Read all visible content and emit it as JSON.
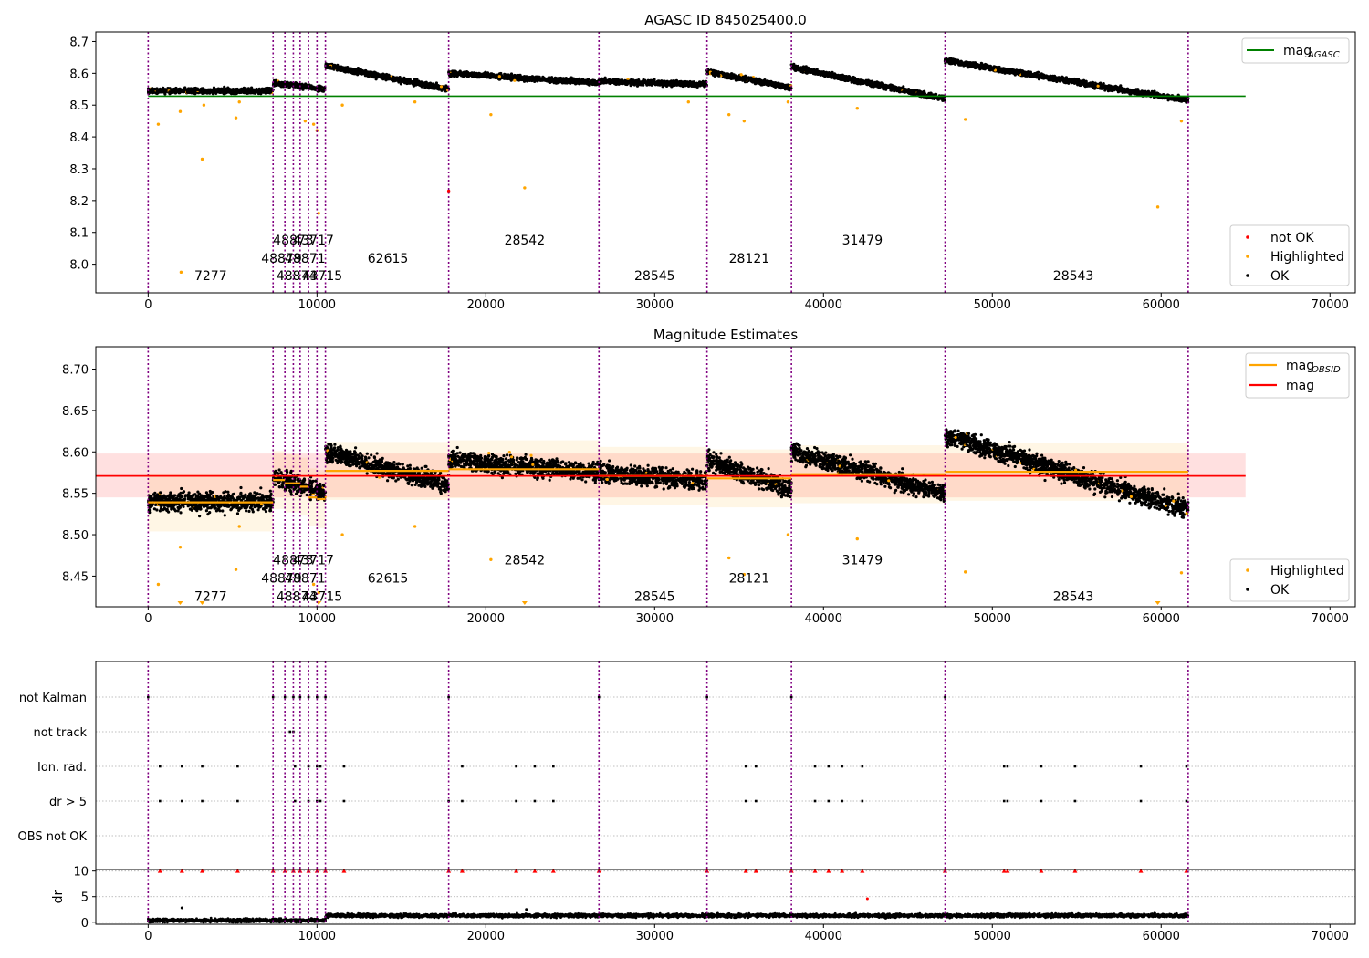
{
  "colors": {
    "ok": "#000000",
    "highlighted": "#ffa500",
    "not_ok": "#ff0000",
    "obsid_line": "#800080",
    "mag_agasc": "#008000",
    "mag_obsid": "#ffa500",
    "mag": "#ff0000"
  },
  "chart_data": [
    {
      "type": "scatter",
      "title": "AGASC ID 845025400.0",
      "xlim": [
        -3100,
        71500
      ],
      "ylim": [
        7.91,
        8.73
      ],
      "xticks": [
        0,
        10000,
        20000,
        30000,
        40000,
        50000,
        60000,
        70000
      ],
      "yticks": [
        8.0,
        8.1,
        8.2,
        8.3,
        8.4,
        8.5,
        8.6,
        8.7
      ],
      "obsid_boundaries": [
        0,
        7400,
        8100,
        8600,
        9000,
        9500,
        10000,
        10500,
        17800,
        26700,
        33100,
        38100,
        47200,
        61600
      ],
      "segments": [
        {
          "x0": 0,
          "x1": 7400,
          "start": 8.545,
          "end": 8.545
        },
        {
          "x0": 7400,
          "x1": 10500,
          "start": 8.57,
          "end": 8.55
        },
        {
          "x0": 10500,
          "x1": 17800,
          "start": 8.625,
          "end": 8.55
        },
        {
          "x0": 17800,
          "x1": 26700,
          "start": 8.6,
          "end": 8.57
        },
        {
          "x0": 26700,
          "x1": 33100,
          "start": 8.575,
          "end": 8.565
        },
        {
          "x0": 33100,
          "x1": 38100,
          "start": 8.605,
          "end": 8.555
        },
        {
          "x0": 38100,
          "x1": 47200,
          "start": 8.62,
          "end": 8.52
        },
        {
          "x0": 47200,
          "x1": 61600,
          "start": 8.64,
          "end": 8.515
        }
      ],
      "highlighted_points": [
        [
          600,
          8.44
        ],
        [
          1900,
          8.48
        ],
        [
          1950,
          7.975
        ],
        [
          3200,
          8.33
        ],
        [
          3300,
          8.5
        ],
        [
          5200,
          8.46
        ],
        [
          5400,
          8.51
        ],
        [
          9300,
          8.45
        ],
        [
          9800,
          8.44
        ],
        [
          10000,
          8.42
        ],
        [
          10100,
          8.16
        ],
        [
          11500,
          8.5
        ],
        [
          15800,
          8.51
        ],
        [
          20300,
          8.47
        ],
        [
          22300,
          8.24
        ],
        [
          32000,
          8.51
        ],
        [
          34400,
          8.47
        ],
        [
          35300,
          8.45
        ],
        [
          37900,
          8.51
        ],
        [
          42000,
          8.49
        ],
        [
          48400,
          8.455
        ],
        [
          59800,
          8.18
        ],
        [
          61200,
          8.45
        ]
      ],
      "not_ok_points": [
        [
          17800,
          8.23
        ]
      ],
      "hlines": [
        {
          "name": "mag_AGASC",
          "y": 8.528,
          "x0": 0,
          "x1": 65000
        }
      ],
      "obsid_labels": [
        {
          "text": "7277",
          "x": 3700,
          "y": 7.95
        },
        {
          "text": "48879",
          "x": 7900,
          "y": 8.005
        },
        {
          "text": "48873",
          "x": 8600,
          "y": 8.062
        },
        {
          "text": "48871",
          "x": 9300,
          "y": 8.005
        },
        {
          "text": "48874",
          "x": 8800,
          "y": 7.95
        },
        {
          "text": "43717",
          "x": 9800,
          "y": 8.062
        },
        {
          "text": "43715",
          "x": 10300,
          "y": 7.95
        },
        {
          "text": "62615",
          "x": 14200,
          "y": 8.005
        },
        {
          "text": "28542",
          "x": 22300,
          "y": 8.062
        },
        {
          "text": "28545",
          "x": 30000,
          "y": 7.95
        },
        {
          "text": "28121",
          "x": 35600,
          "y": 8.005
        },
        {
          "text": "31479",
          "x": 42300,
          "y": 8.062
        },
        {
          "text": "28543",
          "x": 54800,
          "y": 7.95
        }
      ],
      "legend_lines": [
        "mag",
        "AGASC"
      ],
      "legend_points": [
        "not OK",
        "Highlighted",
        "OK"
      ]
    },
    {
      "type": "scatter",
      "title": "Magnitude Estimates",
      "xlim": [
        -3100,
        71500
      ],
      "ylim": [
        8.413,
        8.727
      ],
      "xticks": [
        0,
        10000,
        20000,
        30000,
        40000,
        50000,
        60000,
        70000
      ],
      "yticks": [
        8.45,
        8.5,
        8.55,
        8.6,
        8.65,
        8.7
      ],
      "segments": [
        {
          "x0": 0,
          "x1": 7400,
          "start": 8.54,
          "end": 8.54
        },
        {
          "x0": 7400,
          "x1": 10500,
          "start": 8.57,
          "end": 8.55
        },
        {
          "x0": 10500,
          "x1": 17800,
          "start": 8.6,
          "end": 8.56
        },
        {
          "x0": 17800,
          "x1": 26700,
          "start": 8.59,
          "end": 8.575
        },
        {
          "x0": 26700,
          "x1": 33100,
          "start": 8.575,
          "end": 8.565
        },
        {
          "x0": 33100,
          "x1": 38100,
          "start": 8.59,
          "end": 8.555
        },
        {
          "x0": 38100,
          "x1": 47200,
          "start": 8.6,
          "end": 8.55
        },
        {
          "x0": 47200,
          "x1": 61600,
          "start": 8.62,
          "end": 8.53
        }
      ],
      "mag": {
        "value": 8.571,
        "band": [
          8.545,
          8.598
        ],
        "x0": -3100,
        "x1": 65000
      },
      "mag_obsid": [
        {
          "x0": 0,
          "x1": 7400,
          "y": 8.539
        },
        {
          "x0": 7400,
          "x1": 8100,
          "y": 8.566
        },
        {
          "x0": 8100,
          "x1": 9000,
          "y": 8.562
        },
        {
          "x0": 9000,
          "x1": 9500,
          "y": 8.558
        },
        {
          "x0": 9500,
          "x1": 10000,
          "y": 8.545
        },
        {
          "x0": 10000,
          "x1": 10500,
          "y": 8.543
        },
        {
          "x0": 10500,
          "x1": 17800,
          "y": 8.577
        },
        {
          "x0": 17800,
          "x1": 26700,
          "y": 8.579
        },
        {
          "x0": 26700,
          "x1": 33100,
          "y": 8.571
        },
        {
          "x0": 33100,
          "x1": 38100,
          "y": 8.568
        },
        {
          "x0": 38100,
          "x1": 47200,
          "y": 8.573
        },
        {
          "x0": 47200,
          "x1": 61600,
          "y": 8.576
        }
      ],
      "highlighted_points": [
        [
          600,
          8.44
        ],
        [
          1900,
          8.485
        ],
        [
          5200,
          8.458
        ],
        [
          5400,
          8.51
        ],
        [
          9800,
          8.44
        ],
        [
          10100,
          8.43
        ],
        [
          11500,
          8.5
        ],
        [
          15800,
          8.51
        ],
        [
          20300,
          8.47
        ],
        [
          34400,
          8.472
        ],
        [
          35300,
          8.452
        ],
        [
          37900,
          8.5
        ],
        [
          42000,
          8.495
        ],
        [
          48400,
          8.455
        ],
        [
          61200,
          8.454
        ]
      ],
      "obsid_labels": [
        {
          "text": "7277",
          "x": 3700,
          "y": 8.42
        },
        {
          "text": "48879",
          "x": 7900,
          "y": 8.442
        },
        {
          "text": "48873",
          "x": 8600,
          "y": 8.464
        },
        {
          "text": "48871",
          "x": 9300,
          "y": 8.442
        },
        {
          "text": "48874",
          "x": 8800,
          "y": 8.42
        },
        {
          "text": "43717",
          "x": 9800,
          "y": 8.464
        },
        {
          "text": "43715",
          "x": 10300,
          "y": 8.42
        },
        {
          "text": "62615",
          "x": 14200,
          "y": 8.442
        },
        {
          "text": "28542",
          "x": 22300,
          "y": 8.464
        },
        {
          "text": "28545",
          "x": 30000,
          "y": 8.42
        },
        {
          "text": "28121",
          "x": 35600,
          "y": 8.442
        },
        {
          "text": "31479",
          "x": 42300,
          "y": 8.464
        },
        {
          "text": "28543",
          "x": 54800,
          "y": 8.42
        }
      ],
      "legend_lines": [
        {
          "label": "mag",
          "sub": "OBSID"
        },
        {
          "label": "mag",
          "sub": ""
        }
      ],
      "legend_points": [
        "Highlighted",
        "OK"
      ]
    },
    {
      "type": "scatter",
      "title": "",
      "xlim": [
        -3100,
        71500
      ],
      "xticks": [
        0,
        10000,
        20000,
        30000,
        40000,
        50000,
        60000,
        70000
      ],
      "flag_rows": [
        "not Kalman",
        "not track",
        "Ion. rad.",
        "dr > 5",
        "OBS not OK"
      ],
      "flag_events": {
        "not Kalman": [
          0,
          7400,
          8100,
          8600,
          9000,
          9500,
          10000,
          10500,
          17800,
          26700,
          33100,
          38100,
          47200
        ],
        "not track": [
          8400,
          8600
        ],
        "Ion. rad.": [
          700,
          2000,
          3200,
          5300,
          8700,
          9500,
          10000,
          10200,
          11600,
          18600,
          21800,
          22900,
          24000,
          35400,
          36000,
          39500,
          40300,
          41100,
          42300,
          50700,
          50900,
          52900,
          54900,
          58800,
          61500
        ],
        "dr > 5": [
          700,
          2000,
          3200,
          5300,
          8700,
          9500,
          10000,
          10200,
          11600,
          17800,
          18600,
          21800,
          22900,
          24000,
          35400,
          36000,
          39500,
          40300,
          41100,
          42300,
          50700,
          50900,
          52900,
          54900,
          58800,
          61500
        ],
        "OBS not OK": []
      },
      "ylabel": "dr",
      "dr_ylim": [
        -0.4,
        10.3
      ],
      "dr_yticks": [
        0,
        5,
        10
      ],
      "dr_outliers": [
        700,
        2000,
        3200,
        5300,
        7400,
        8100,
        8600,
        9000,
        9500,
        10000,
        10500,
        11600,
        17800,
        18600,
        21800,
        22900,
        24000,
        26700,
        33100,
        35400,
        36000,
        38100,
        39500,
        40300,
        41100,
        42300,
        47200,
        50700,
        50900,
        52900,
        54900,
        58800,
        61500
      ],
      "dr_mid_points": [
        [
          2000,
          2.8
        ],
        [
          22400,
          2.5
        ],
        [
          42600,
          4.6
        ]
      ]
    }
  ]
}
